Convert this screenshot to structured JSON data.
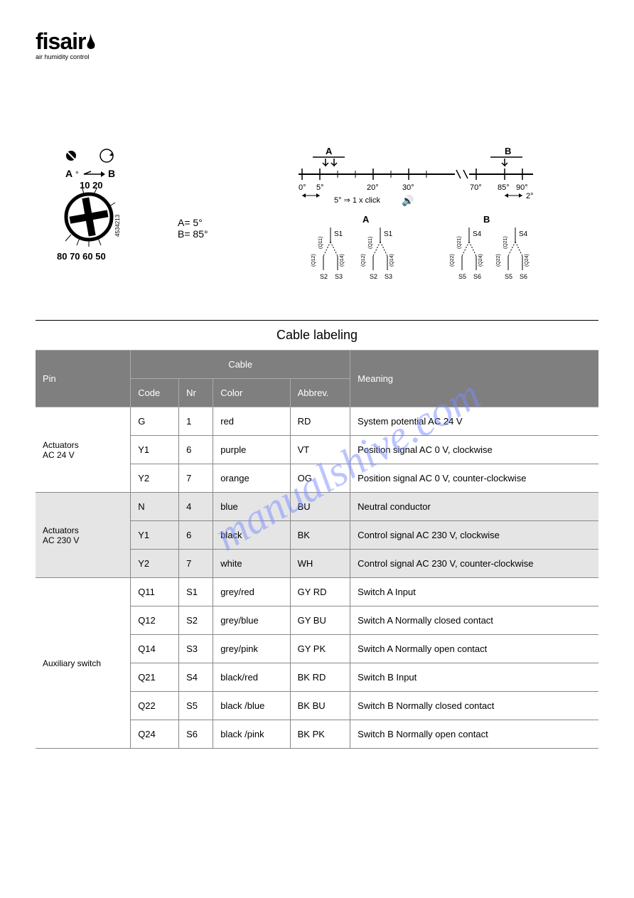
{
  "logo": {
    "name": "fisair",
    "tagline": "air humidity control"
  },
  "diagram": {
    "dial_labels": [
      "A",
      "B"
    ],
    "dial_top": "10 20",
    "dial_bottom": "80 70 60 50",
    "dial_side_text": "4534213",
    "angle_a": "A= 5°",
    "angle_b": "B= 85°",
    "scale": {
      "label_a": "A",
      "label_b": "B",
      "ticks": [
        "0°",
        "5°",
        "20°",
        "30°",
        "70°",
        "85°",
        "90°"
      ],
      "click_text": "5° ⇒ 1 x click",
      "two_deg": "2°",
      "switches_a": [
        {
          "top": "S1",
          "side": "(Q11)",
          "bot": [
            "S2",
            "S3"
          ],
          "bot_side": [
            "(Q12)",
            "(Q14)"
          ]
        },
        {
          "top": "S1",
          "side": "(Q11)",
          "bot": [
            "S2",
            "S3"
          ],
          "bot_side": [
            "(Q12)",
            "(Q14)"
          ]
        }
      ],
      "switches_b": [
        {
          "top": "S4",
          "side": "(Q21)",
          "bot": [
            "S5",
            "S6"
          ],
          "bot_side": [
            "(Q22)",
            "(Q24)"
          ]
        },
        {
          "top": "S4",
          "side": "(Q21)",
          "bot": [
            "S5",
            "S6"
          ],
          "bot_side": [
            "(Q22)",
            "(Q24)"
          ]
        }
      ]
    }
  },
  "table": {
    "title": "Cable labeling",
    "headers": {
      "pin": "Pin",
      "cable": "Cable",
      "code": "Code",
      "nr": "Nr",
      "color": "Color",
      "abbrev": "Abbrev.",
      "meaning": "Meaning"
    },
    "groups": [
      {
        "pin": "Actuators\nAC 24 V",
        "shaded": false,
        "rows": [
          {
            "code": "G",
            "nr": "1",
            "color": "red",
            "abbrev": "RD",
            "meaning": "System potential AC 24 V"
          },
          {
            "code": "Y1",
            "nr": "6",
            "color": "purple",
            "abbrev": "VT",
            "meaning": "Position signal AC 0 V, clockwise"
          },
          {
            "code": "Y2",
            "nr": "7",
            "color": "orange",
            "abbrev": "OG",
            "meaning": "Position signal AC 0 V, counter-clockwise"
          }
        ]
      },
      {
        "pin": "Actuators\nAC 230 V",
        "shaded": true,
        "rows": [
          {
            "code": "N",
            "nr": "4",
            "color": "blue",
            "abbrev": "BU",
            "meaning": "Neutral conductor"
          },
          {
            "code": "Y1",
            "nr": "6",
            "color": "black",
            "abbrev": "BK",
            "meaning": "Control signal AC 230 V, clockwise"
          },
          {
            "code": "Y2",
            "nr": "7",
            "color": "white",
            "abbrev": "WH",
            "meaning": "Control signal AC 230 V, counter-clockwise"
          }
        ]
      },
      {
        "pin": "Auxiliary switch",
        "shaded": false,
        "rows": [
          {
            "code": "Q11",
            "nr": "S1",
            "color": "grey/red",
            "abbrev": "GY RD",
            "meaning": "Switch A Input"
          },
          {
            "code": "Q12",
            "nr": "S2",
            "color": "grey/blue",
            "abbrev": "GY BU",
            "meaning": "Switch A Normally closed contact"
          },
          {
            "code": "Q14",
            "nr": "S3",
            "color": "grey/pink",
            "abbrev": "GY PK",
            "meaning": "Switch A Normally open contact"
          },
          {
            "code": "Q21",
            "nr": "S4",
            "color": "black/red",
            "abbrev": "BK RD",
            "meaning": "Switch B Input"
          },
          {
            "code": "Q22",
            "nr": "S5",
            "color": "black /blue",
            "abbrev": "BK BU",
            "meaning": "Switch B Normally closed contact"
          },
          {
            "code": "Q24",
            "nr": "S6",
            "color": "black /pink",
            "abbrev": "BK PK",
            "meaning": "Switch B Normally open contact"
          }
        ]
      }
    ]
  },
  "watermark": "manualshive.com",
  "colors": {
    "header_bg": "#7f7f7f",
    "header_fg": "#ffffff",
    "shaded_bg": "#e5e5e5",
    "watermark": "#7a8cff"
  }
}
